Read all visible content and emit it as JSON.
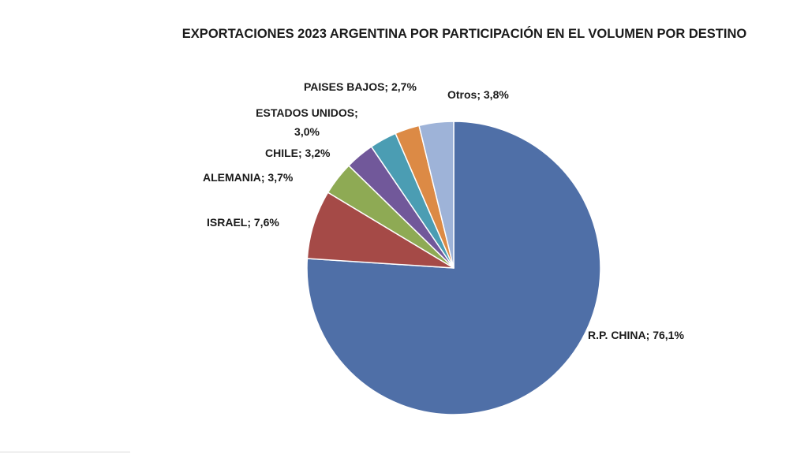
{
  "chart_data": {
    "type": "pie",
    "title": "EXPORTACIONES 2023 ARGENTINA POR PARTICIPACIÓN EN EL VOLUMEN POR DESTINO",
    "start_angle_deg": 0,
    "direction": "clockwise",
    "slices": [
      {
        "name": "R.P. CHINA",
        "value": 76.1,
        "label_lines": [
          "R.P. CHINA; 76,1%"
        ],
        "color": "#4f6fa7"
      },
      {
        "name": "ISRAEL",
        "value": 7.6,
        "label_lines": [
          "ISRAEL; 7,6%"
        ],
        "color": "#a54a47"
      },
      {
        "name": "ALEMANIA",
        "value": 3.7,
        "label_lines": [
          "ALEMANIA; 3,7%"
        ],
        "color": "#8eaa54"
      },
      {
        "name": "CHILE",
        "value": 3.2,
        "label_lines": [
          "CHILE; 3,2%"
        ],
        "color": "#71589a"
      },
      {
        "name": "ESTADOS UNIDOS",
        "value": 3.0,
        "label_lines": [
          "ESTADOS UNIDOS;",
          "3,0%"
        ],
        "color": "#4b9db3"
      },
      {
        "name": "PAISES BAJOS",
        "value": 2.7,
        "label_lines": [
          "PAISES BAJOS; 2,7%"
        ],
        "color": "#dc8a45"
      },
      {
        "name": "Otros",
        "value": 3.8,
        "label_lines": [
          "Otros; 3,8%"
        ],
        "color": "#9eb3d8"
      }
    ]
  }
}
